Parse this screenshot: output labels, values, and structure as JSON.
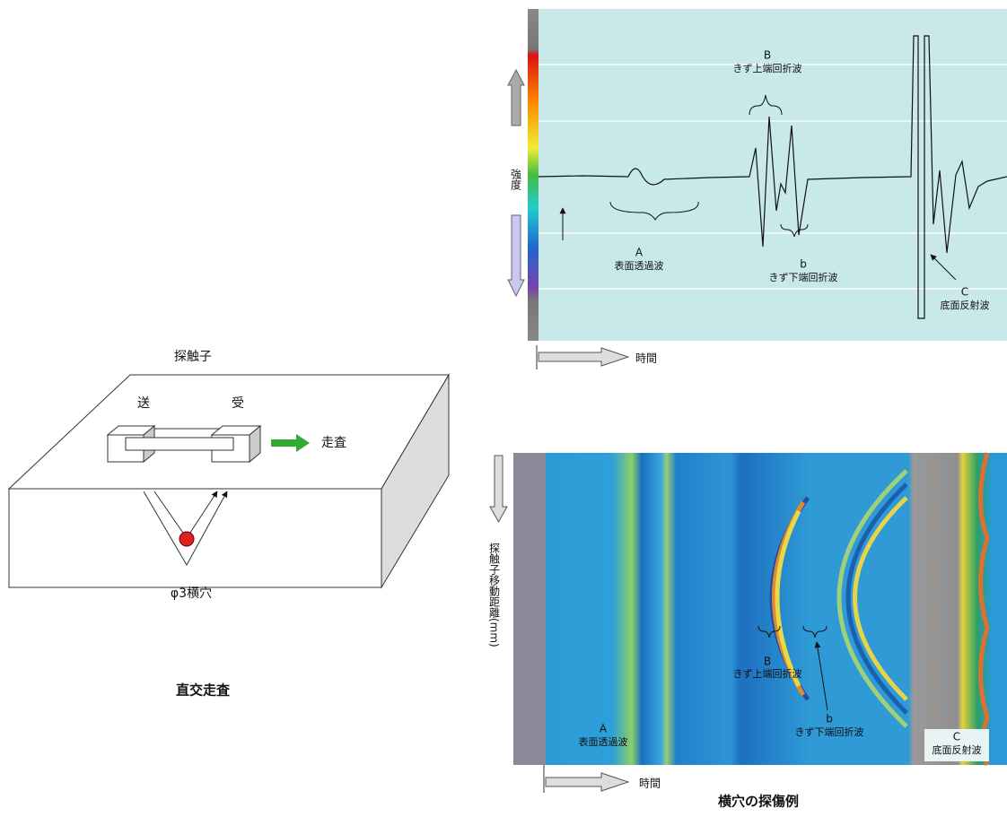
{
  "setup": {
    "probe_label": "探触子",
    "send": "送",
    "receive": "受",
    "scan": "走査",
    "hole": "φ3横穴",
    "caption": "直交走査"
  },
  "a_scan": {
    "y_label": "強度",
    "x_label": "時間",
    "waves": [
      {
        "letter": "B",
        "text": "きず上端回折波"
      },
      {
        "letter": "A",
        "text": "表面透過波"
      },
      {
        "letter": "b",
        "text": "きず下端回折波"
      },
      {
        "letter": "C",
        "text": "底面反射波"
      }
    ]
  },
  "b_scan": {
    "y_label": "探触子移動距離(mm)",
    "x_label": "時間",
    "waves": [
      {
        "letter": "B",
        "text": "きず上端回折波"
      },
      {
        "letter": "A",
        "text": "表面透過波"
      },
      {
        "letter": "b",
        "text": "きず下端回折波"
      },
      {
        "letter": "C",
        "text": "底面反射波"
      }
    ]
  },
  "caption": "横穴の探傷例"
}
